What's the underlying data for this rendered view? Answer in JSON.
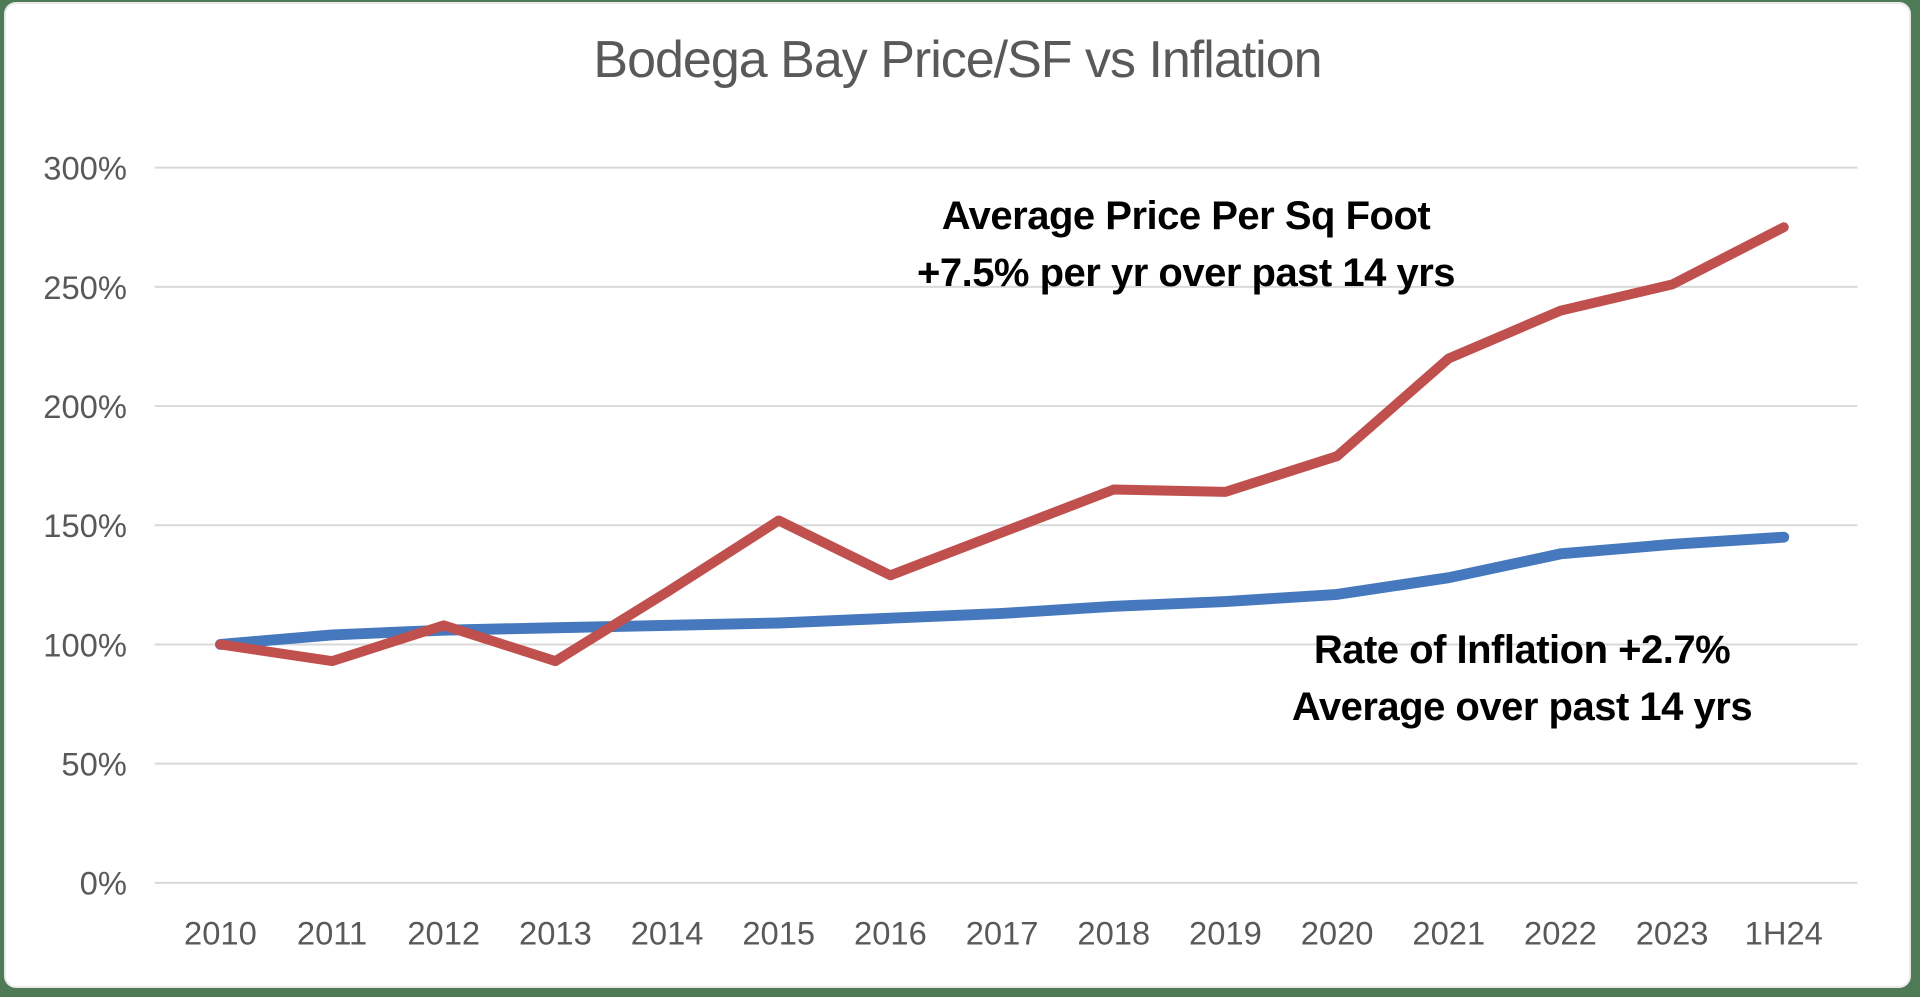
{
  "colors": {
    "frame": "#4e7a55",
    "card_background": "#ffffff",
    "grid": "#d9d9d9",
    "axis_label": "#595959",
    "title": "#595959",
    "annotation_text": "#000000",
    "price_series": "#c0504d",
    "inflation_series": "#4678bd"
  },
  "chart_data": {
    "type": "line",
    "title": "Bodega Bay Price/SF vs Inflation",
    "categories": [
      "2010",
      "2011",
      "2012",
      "2013",
      "2014",
      "2015",
      "2016",
      "2017",
      "2018",
      "2019",
      "2020",
      "2021",
      "2022",
      "2023",
      "1H24"
    ],
    "series": [
      {
        "name": "Average Price Per Sq Foot",
        "color": "#c0504d",
        "values": [
          100,
          93,
          108,
          93,
          122,
          152,
          129,
          147,
          165,
          164,
          179,
          220,
          240,
          251,
          275
        ]
      },
      {
        "name": "Rate of Inflation",
        "color": "#4678bd",
        "values": [
          100,
          104,
          106,
          107,
          108,
          109,
          111,
          113,
          116,
          118,
          121,
          128,
          138,
          142,
          145
        ]
      }
    ],
    "xlabel": "",
    "ylabel": "",
    "ylim": [
      0,
      300
    ],
    "yticks": [
      0,
      50,
      100,
      150,
      200,
      250,
      300
    ],
    "ytick_labels": [
      "0%",
      "50%",
      "100%",
      "150%",
      "200%",
      "250%",
      "300%"
    ],
    "grid": true,
    "legend_position": "none",
    "annotations": [
      {
        "series": "Average Price Per Sq Foot",
        "lines": [
          "Average Price Per Sq Foot",
          "+7.5% per yr over past 14 yrs"
        ]
      },
      {
        "series": "Rate of Inflation",
        "lines": [
          "Rate of Inflation +2.7%",
          "Average over past 14 yrs"
        ]
      }
    ]
  }
}
